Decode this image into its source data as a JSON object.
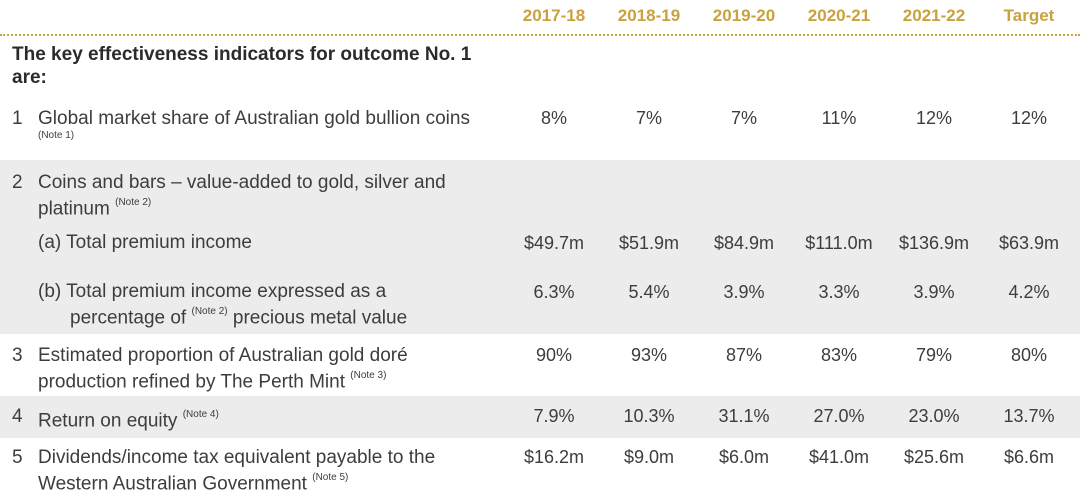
{
  "columns": [
    "2017-18",
    "2018-19",
    "2019-20",
    "2020-21",
    "2021-22",
    "Target"
  ],
  "title": "The key effectiveness indicators for outcome No. 1 are:",
  "rows": [
    {
      "num": "1",
      "label": "Global market share of Australian gold bullion coins",
      "note": "(Note 1)",
      "values": [
        "8%",
        "7%",
        "7%",
        "11%",
        "12%",
        "12%"
      ]
    },
    {
      "num": "2",
      "label": "Coins and bars – value-added to gold, silver and platinum",
      "note": "(Note 2)"
    },
    {
      "label": "(a) Total premium income",
      "values": [
        "$49.7m",
        "$51.9m",
        "$84.9m",
        "$111.0m",
        "$136.9m",
        "$63.9m"
      ]
    },
    {
      "label_a": "(b) Total premium income expressed as a",
      "label_b_pre": "percentage of",
      "note": "(Note 2)",
      "label_b_post": "precious metal value",
      "values": [
        "6.3%",
        "5.4%",
        "3.9%",
        "3.3%",
        "3.9%",
        "4.2%"
      ]
    },
    {
      "num": "3",
      "label_a": "Estimated proportion of Australian gold doré",
      "label_b": "production refined by The Perth Mint",
      "note": "(Note 3)",
      "values": [
        "90%",
        "93%",
        "87%",
        "83%",
        "79%",
        "80%"
      ]
    },
    {
      "num": "4",
      "label": "Return on equity",
      "note": "(Note 4)",
      "values": [
        "7.9%",
        "10.3%",
        "31.1%",
        "27.0%",
        "23.0%",
        "13.7%"
      ]
    },
    {
      "num": "5",
      "label_a": "Dividends/income tax equivalent payable to the",
      "label_b": "Western Australian Government",
      "note": "(Note 5)",
      "values": [
        "$16.2m",
        "$9.0m",
        "$6.0m",
        "$41.0m",
        "$25.6m",
        "$6.6m"
      ]
    }
  ]
}
